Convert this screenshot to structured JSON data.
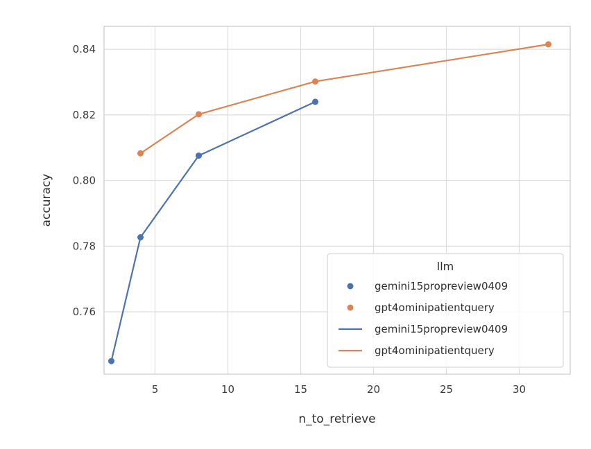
{
  "chart_data": {
    "type": "line",
    "xlabel": "n_to_retrieve",
    "ylabel": "accuracy",
    "xlim": [
      1.5,
      33.5
    ],
    "ylim": [
      0.741,
      0.847
    ],
    "xticks": [
      5,
      10,
      15,
      20,
      25,
      30
    ],
    "yticks": [
      0.76,
      0.78,
      0.8,
      0.82,
      0.84
    ],
    "ytick_labels": [
      "0.76",
      "0.78",
      "0.80",
      "0.82",
      "0.84"
    ],
    "grid": true,
    "legend": {
      "title": "llm",
      "position": "bottom-right",
      "entries": [
        {
          "kind": "marker",
          "label": "gemini15propreview0409",
          "color": "#4C72B0"
        },
        {
          "kind": "marker",
          "label": "gpt4ominipatientquery",
          "color": "#DD8452"
        },
        {
          "kind": "line",
          "label": "gemini15propreview0409",
          "color": "#4C72B0"
        },
        {
          "kind": "line",
          "label": "gpt4ominipatientquery",
          "color": "#DD8452"
        }
      ]
    },
    "series": [
      {
        "name": "gemini15propreview0409",
        "color": "#4C72B0",
        "x": [
          2,
          4,
          8,
          16
        ],
        "y": [
          0.745,
          0.7827,
          0.8076,
          0.824
        ]
      },
      {
        "name": "gpt4ominipatientquery",
        "color": "#DD8452",
        "x": [
          4,
          8,
          16,
          32
        ],
        "y": [
          0.8083,
          0.8202,
          0.8302,
          0.8415
        ]
      }
    ]
  }
}
